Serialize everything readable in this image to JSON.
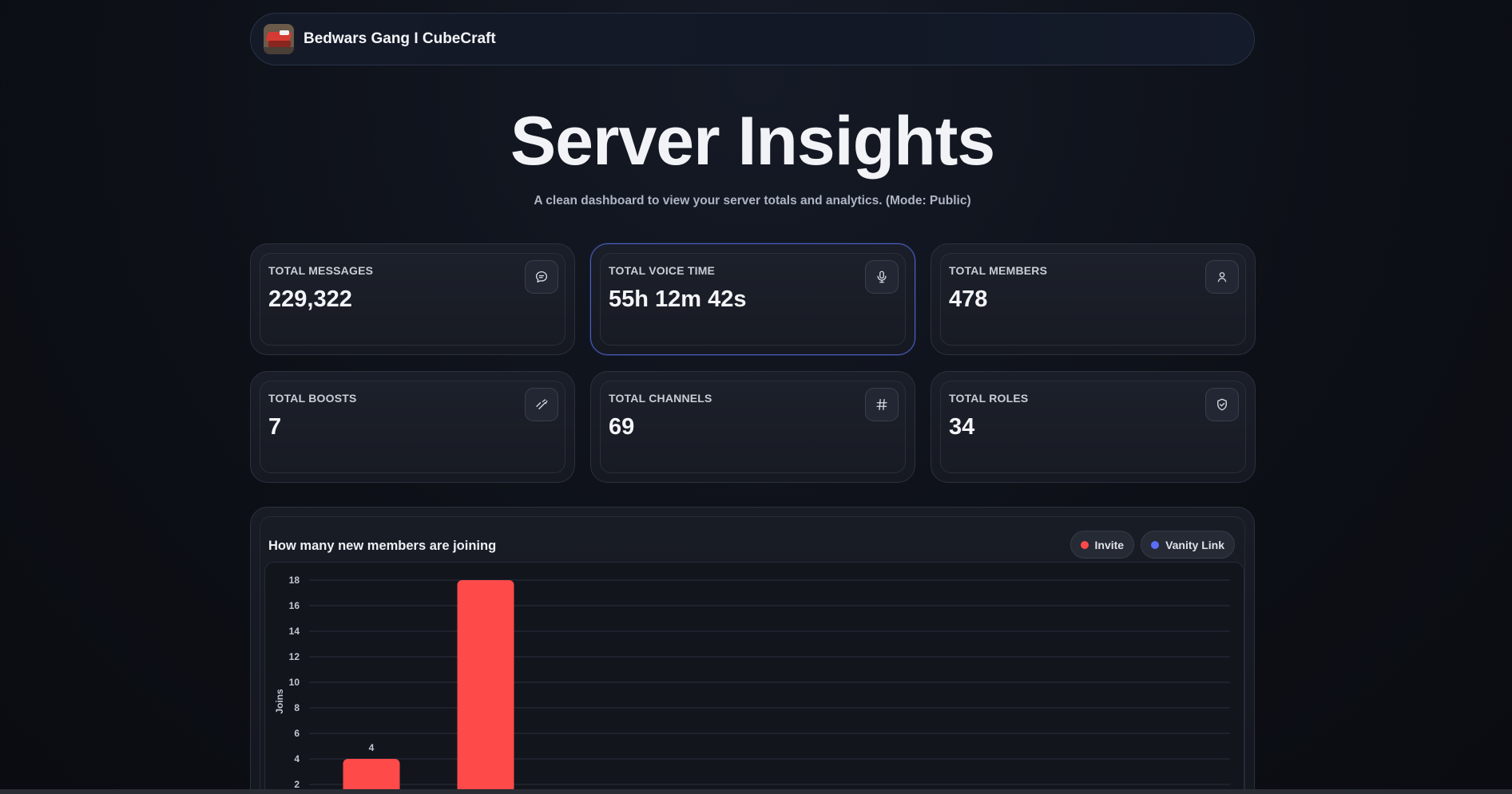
{
  "header": {
    "server_name": "Bedwars Gang I CubeCraft",
    "avatar_icon": "server-avatar-bed"
  },
  "hero": {
    "title": "Server Insights",
    "subtitle": "A clean dashboard to view your server totals and analytics. (Mode: Public)"
  },
  "stats": [
    {
      "label": "TOTAL MESSAGES",
      "value": "229,322",
      "icon": "chat-bubble-icon"
    },
    {
      "label": "TOTAL VOICE TIME",
      "value": "55h 12m 42s",
      "icon": "microphone-icon"
    },
    {
      "label": "TOTAL MEMBERS",
      "value": "478",
      "icon": "user-icon"
    },
    {
      "label": "TOTAL BOOSTS",
      "value": "7",
      "icon": "boost-icon"
    },
    {
      "label": "TOTAL CHANNELS",
      "value": "69",
      "icon": "hash-icon"
    },
    {
      "label": "TOTAL ROLES",
      "value": "34",
      "icon": "shield-icon"
    }
  ],
  "colors": {
    "invite": "#ff4a4a",
    "vanity": "#5b6ef5",
    "active_border": "#4a5fc4"
  },
  "chart": {
    "title": "How many new members are joining",
    "legend": [
      {
        "label": "Invite",
        "color": "#ff4a4a"
      },
      {
        "label": "Vanity Link",
        "color": "#5b6ef5"
      }
    ]
  },
  "chart_data": {
    "type": "bar",
    "title": "How many new members are joining",
    "ylabel": "Joins",
    "xlabel": "",
    "ylim": [
      0,
      18
    ],
    "yticks": [
      2,
      4,
      6,
      8,
      10,
      12,
      14,
      16,
      18
    ],
    "grid": true,
    "legend_position": "top-right",
    "series": [
      {
        "name": "Invite",
        "values": [
          4,
          18
        ],
        "data_labels": [
          "4",
          ""
        ]
      },
      {
        "name": "Vanity Link",
        "values": [
          0,
          0
        ]
      }
    ]
  }
}
